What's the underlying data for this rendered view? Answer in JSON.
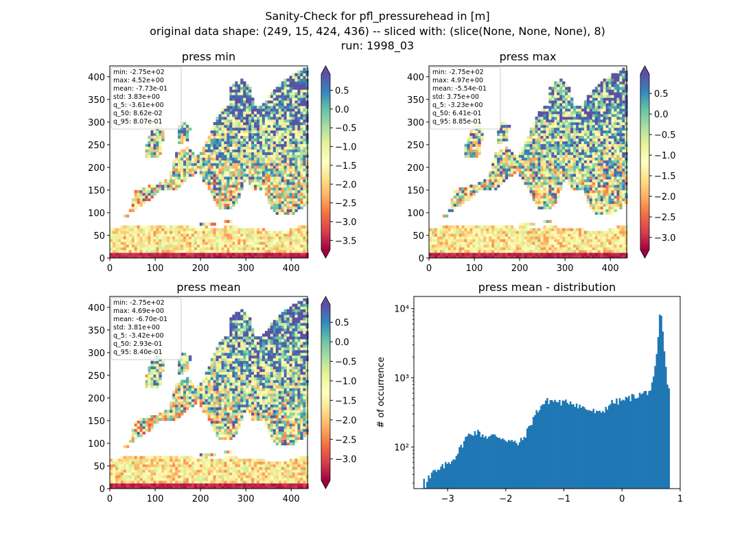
{
  "suptitle": {
    "line1": "Sanity-Check for pfl_pressurehead in [m]",
    "line2": "original data shape: (249, 15, 424, 436) -- sliced with: (slice(None, None, None), 8)",
    "line3": "run: 1998_03"
  },
  "colormap": {
    "name": "Spectral",
    "stops": [
      "#9e0142",
      "#d53e4f",
      "#f46d43",
      "#fdae61",
      "#fee08b",
      "#ffffbf",
      "#e6f598",
      "#abdda4",
      "#66c2a5",
      "#3288bd",
      "#5e4fa2"
    ]
  },
  "chart_data": [
    {
      "type": "heatmap",
      "title": "press min",
      "xlim": [
        0,
        436
      ],
      "ylim": [
        0,
        424
      ],
      "xticks": [
        "0",
        "100",
        "200",
        "300",
        "400"
      ],
      "yticks": [
        "0",
        "50",
        "100",
        "150",
        "200",
        "250",
        "300",
        "350",
        "400"
      ],
      "colorbar": {
        "range": [
          -3.75,
          0.93
        ],
        "ticks": [
          "0.5",
          "0.0",
          "−0.5",
          "−1.0",
          "−1.5",
          "−2.0",
          "−2.5",
          "−3.0",
          "−3.5"
        ],
        "tick_values": [
          0.5,
          0.0,
          -0.5,
          -1.0,
          -1.5,
          -2.0,
          -2.5,
          -3.0,
          -3.5
        ]
      },
      "stats": [
        "min: -2.75e+02",
        "max: 4.52e+00",
        "mean: -7.73e-01",
        "std: 3.83e+00",
        "q_5: -3.61e+00",
        "q_50: 8.62e-02",
        "q_95: 8.07e-01"
      ]
    },
    {
      "type": "heatmap",
      "title": "press max",
      "xlim": [
        0,
        436
      ],
      "ylim": [
        0,
        424
      ],
      "xticks": [
        "0",
        "100",
        "200",
        "300",
        "400"
      ],
      "yticks": [
        "0",
        "50",
        "100",
        "150",
        "200",
        "250",
        "300",
        "350",
        "400"
      ],
      "colorbar": {
        "range": [
          -3.3,
          0.97
        ],
        "ticks": [
          "0.5",
          "0.0",
          "−0.5",
          "−1.0",
          "−1.5",
          "−2.0",
          "−2.5",
          "−3.0"
        ],
        "tick_values": [
          0.5,
          0.0,
          -0.5,
          -1.0,
          -1.5,
          -2.0,
          -2.5,
          -3.0
        ]
      },
      "stats": [
        "min: -2.75e+02",
        "max: 4.97e+00",
        "mean: -5.54e-01",
        "std: 3.75e+00",
        "q_5: -3.23e+00",
        "q_50: 6.41e-01",
        "q_95: 8.85e-01"
      ]
    },
    {
      "type": "heatmap",
      "title": "press mean",
      "xlim": [
        0,
        436
      ],
      "ylim": [
        0,
        424
      ],
      "xticks": [
        "0",
        "100",
        "200",
        "300",
        "400"
      ],
      "yticks": [
        "0",
        "50",
        "100",
        "150",
        "200",
        "250",
        "300",
        "350",
        "400"
      ],
      "colorbar": {
        "range": [
          -3.55,
          0.95
        ],
        "ticks": [
          "0.5",
          "0.0",
          "−0.5",
          "−1.0",
          "−1.5",
          "−2.0",
          "−2.5",
          "−3.0"
        ],
        "tick_values": [
          0.5,
          0.0,
          -0.5,
          -1.0,
          -1.5,
          -2.0,
          -2.5,
          -3.0
        ]
      },
      "stats": [
        "min: -2.75e+02",
        "max: 4.69e+00",
        "mean: -6.70e-01",
        "std: 3.81e+00",
        "q_5: -3.42e+00",
        "q_50: 2.93e-01",
        "q_95: 8.40e-01"
      ]
    },
    {
      "type": "bar",
      "title": "press mean - distribution",
      "xlabel": "",
      "ylabel": "# of occurrence",
      "yscale": "log",
      "xlim": [
        -3.58,
        1.0
      ],
      "ylim": [
        25,
        15000
      ],
      "xticks": [
        -3,
        -2,
        -1,
        0,
        1
      ],
      "xtick_labels": [
        "−3",
        "−2",
        "−1",
        "0",
        "1"
      ],
      "yticks": [
        100,
        1000,
        10000
      ],
      "ytick_labels": [
        "10²",
        "10³",
        "10⁴"
      ],
      "bar_color": "#1f77b4",
      "keypoints": [
        [
          -3.42,
          42
        ],
        [
          -3.38,
          28
        ],
        [
          -3.34,
          38
        ],
        [
          -3.3,
          35
        ],
        [
          -3.25,
          45
        ],
        [
          -3.2,
          42
        ],
        [
          -3.1,
          50
        ],
        [
          -3.0,
          58
        ],
        [
          -2.9,
          68
        ],
        [
          -2.8,
          90
        ],
        [
          -2.7,
          130
        ],
        [
          -2.6,
          160
        ],
        [
          -2.5,
          165
        ],
        [
          -2.4,
          150
        ],
        [
          -2.3,
          140
        ],
        [
          -2.2,
          145
        ],
        [
          -2.1,
          140
        ],
        [
          -2.0,
          130
        ],
        [
          -1.9,
          120
        ],
        [
          -1.8,
          110
        ],
        [
          -1.7,
          130
        ],
        [
          -1.6,
          190
        ],
        [
          -1.5,
          290
        ],
        [
          -1.4,
          390
        ],
        [
          -1.3,
          460
        ],
        [
          -1.2,
          470
        ],
        [
          -1.1,
          450
        ],
        [
          -1.0,
          430
        ],
        [
          -0.9,
          460
        ],
        [
          -0.8,
          420
        ],
        [
          -0.7,
          380
        ],
        [
          -0.6,
          350
        ],
        [
          -0.5,
          330
        ],
        [
          -0.4,
          300
        ],
        [
          -0.3,
          350
        ],
        [
          -0.2,
          430
        ],
        [
          -0.1,
          450
        ],
        [
          0.0,
          470
        ],
        [
          0.1,
          500
        ],
        [
          0.2,
          540
        ],
        [
          0.3,
          570
        ],
        [
          0.4,
          610
        ],
        [
          0.5,
          680
        ],
        [
          0.55,
          1000
        ],
        [
          0.6,
          2200
        ],
        [
          0.63,
          4500
        ],
        [
          0.66,
          11000
        ],
        [
          0.69,
          5500
        ],
        [
          0.72,
          2900
        ],
        [
          0.75,
          1400
        ],
        [
          0.78,
          900
        ],
        [
          0.8,
          700
        ],
        [
          0.82,
          600
        ]
      ],
      "bins": 160
    }
  ]
}
